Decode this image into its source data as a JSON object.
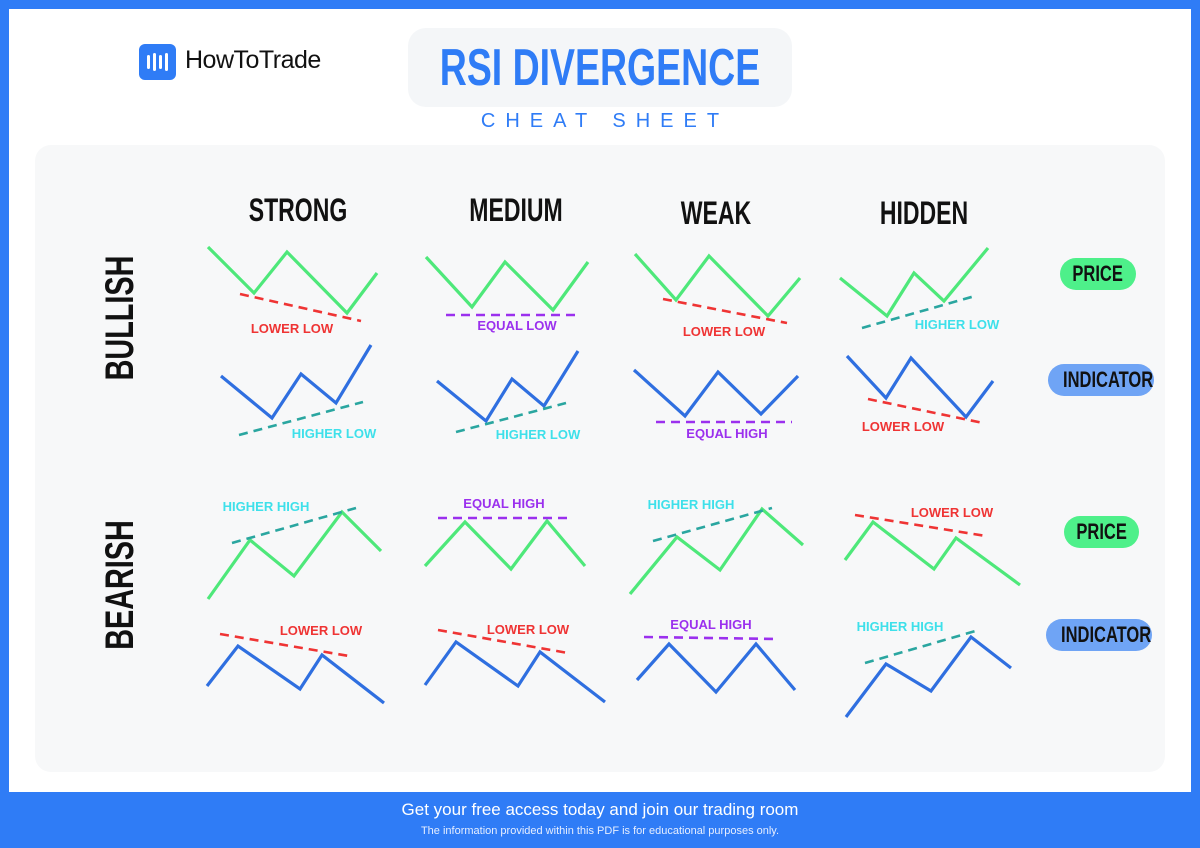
{
  "brand": {
    "name": "HowToTrade",
    "logo_icon": "sound-bars-icon"
  },
  "header": {
    "title": "RSI DIVERGENCE",
    "subtitle": "CHEAT SHEET"
  },
  "columns": [
    "STRONG",
    "MEDIUM",
    "WEAK",
    "HIDDEN"
  ],
  "rows": [
    "BULLISH",
    "BEARISH"
  ],
  "side_labels": {
    "price": "PRICE",
    "indicator": "INDICATOR"
  },
  "colors": {
    "brand": "#2f7cf6",
    "price_line": "#4ee87a",
    "indicator_line": "#2f6fe0",
    "lower": "#ef3434",
    "equal": "#9b30ee",
    "higher": "#2aa6a0",
    "higher_text": "#3ee0ea",
    "price_pill": "#4ef08a",
    "indicator_pill": "#6fa4f5"
  },
  "diagrams": {
    "bullish": {
      "strong": {
        "price": {
          "label": "LOWER LOW",
          "kind": "lower"
        },
        "indicator": {
          "label": "HIGHER LOW",
          "kind": "higher"
        }
      },
      "medium": {
        "price": {
          "label": "EQUAL LOW",
          "kind": "equal"
        },
        "indicator": {
          "label": "HIGHER LOW",
          "kind": "higher"
        }
      },
      "weak": {
        "price": {
          "label": "LOWER LOW",
          "kind": "lower"
        },
        "indicator": {
          "label": "EQUAL HIGH",
          "kind": "equal"
        }
      },
      "hidden": {
        "price": {
          "label": "HIGHER LOW",
          "kind": "higher"
        },
        "indicator": {
          "label": "LOWER LOW",
          "kind": "lower"
        }
      }
    },
    "bearish": {
      "strong": {
        "price": {
          "label": "HIGHER HIGH",
          "kind": "higher"
        },
        "indicator": {
          "label": "LOWER LOW",
          "kind": "lower"
        }
      },
      "medium": {
        "price": {
          "label": "EQUAL HIGH",
          "kind": "equal"
        },
        "indicator": {
          "label": "LOWER LOW",
          "kind": "lower"
        }
      },
      "weak": {
        "price": {
          "label": "HIGHER HIGH",
          "kind": "higher"
        },
        "indicator": {
          "label": "EQUAL HIGH",
          "kind": "equal"
        }
      },
      "hidden": {
        "price": {
          "label": "LOWER LOW",
          "kind": "lower"
        },
        "indicator": {
          "label": "HIGHER HIGH",
          "kind": "higher"
        }
      }
    }
  },
  "footer": {
    "cta": "Get your free access today and join our trading room",
    "disclaimer": "The information provided within this PDF is for educational purposes only."
  }
}
